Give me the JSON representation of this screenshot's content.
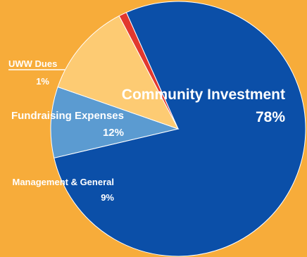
{
  "chart_data": {
    "type": "pie",
    "slices": [
      {
        "label": "Community Investment",
        "value": 78,
        "value_label": "78%",
        "color": "#0B4FA8"
      },
      {
        "label": "Management & General",
        "value": 9,
        "value_label": "9%",
        "color": "#5B9BD1"
      },
      {
        "label": "Fundraising Expenses",
        "value": 12,
        "value_label": "12%",
        "color": "#FDCB73"
      },
      {
        "label": "UWW Dues",
        "value": 1,
        "value_label": "1%",
        "color": "#E2382E"
      }
    ],
    "background": "#F7AC3A",
    "legend": "none",
    "labels": "inline, beside each slice"
  }
}
